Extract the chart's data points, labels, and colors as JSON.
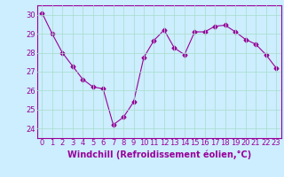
{
  "x": [
    0,
    1,
    2,
    3,
    4,
    5,
    6,
    7,
    8,
    9,
    10,
    11,
    12,
    13,
    14,
    15,
    16,
    17,
    18,
    19,
    20,
    21,
    22,
    23
  ],
  "y": [
    30.1,
    29.0,
    28.0,
    27.3,
    26.6,
    26.2,
    26.1,
    24.2,
    24.6,
    25.4,
    27.75,
    28.65,
    29.2,
    28.25,
    27.9,
    29.1,
    29.1,
    29.4,
    29.45,
    29.1,
    28.7,
    28.45,
    27.9,
    27.2
  ],
  "line_color": "#990099",
  "marker": "D",
  "marker_size": 2.5,
  "bg_color": "#cceeff",
  "grid_color": "#aaddcc",
  "xlabel": "Windchill (Refroidissement éolien,°C)",
  "xlabel_color": "#990099",
  "tick_color": "#990099",
  "ylim": [
    23.5,
    30.5
  ],
  "xlim": [
    -0.5,
    23.5
  ],
  "yticks": [
    24,
    25,
    26,
    27,
    28,
    29,
    30
  ],
  "xticks": [
    0,
    1,
    2,
    3,
    4,
    5,
    6,
    7,
    8,
    9,
    10,
    11,
    12,
    13,
    14,
    15,
    16,
    17,
    18,
    19,
    20,
    21,
    22,
    23
  ],
  "xtick_labels": [
    "0",
    "1",
    "2",
    "3",
    "4",
    "5",
    "6",
    "7",
    "8",
    "9",
    "10",
    "11",
    "12",
    "13",
    "14",
    "15",
    "16",
    "17",
    "18",
    "19",
    "20",
    "21",
    "22",
    "23"
  ],
  "spine_color": "#990099",
  "tick_fontsize": 6.0,
  "xlabel_fontsize": 7.0
}
